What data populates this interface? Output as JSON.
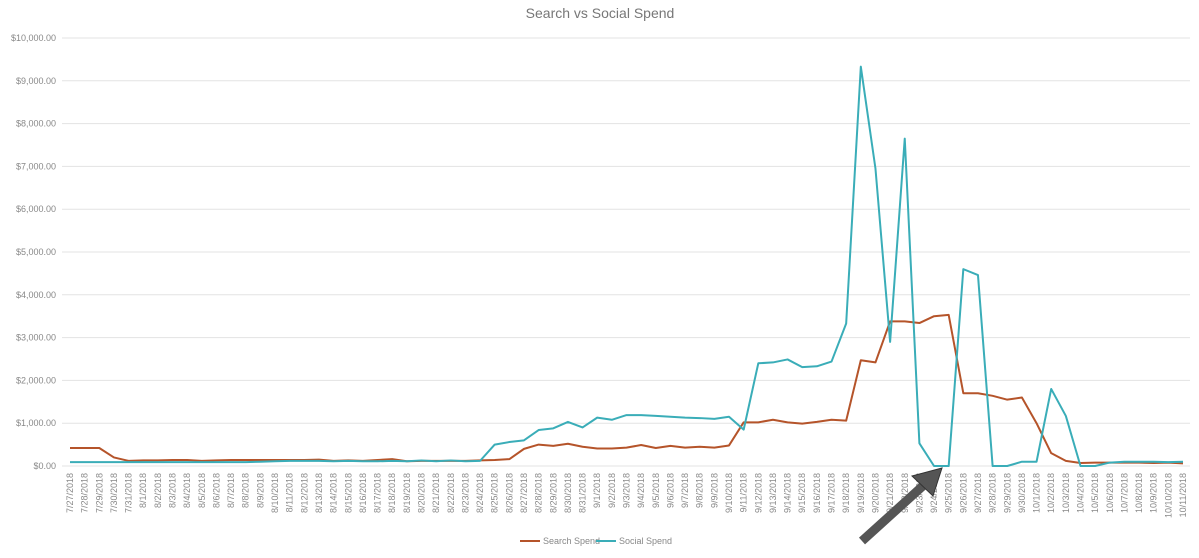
{
  "chart_data": {
    "type": "line",
    "title": "Search vs Social Spend",
    "categories": [
      "7/27/2018",
      "7/28/2018",
      "7/29/2018",
      "7/30/2018",
      "7/31/2018",
      "8/1/2018",
      "8/2/2018",
      "8/3/2018",
      "8/4/2018",
      "8/5/2018",
      "8/6/2018",
      "8/7/2018",
      "8/8/2018",
      "8/9/2018",
      "8/10/2018",
      "8/11/2018",
      "8/12/2018",
      "8/13/2018",
      "8/14/2018",
      "8/15/2018",
      "8/16/2018",
      "8/17/2018",
      "8/18/2018",
      "8/19/2018",
      "8/20/2018",
      "8/21/2018",
      "8/22/2018",
      "8/23/2018",
      "8/24/2018",
      "8/25/2018",
      "8/26/2018",
      "8/27/2018",
      "8/28/2018",
      "8/29/2018",
      "8/30/2018",
      "8/31/2018",
      "9/1/2018",
      "9/2/2018",
      "9/3/2018",
      "9/4/2018",
      "9/5/2018",
      "9/6/2018",
      "9/7/2018",
      "9/8/2018",
      "9/9/2018",
      "9/10/2018",
      "9/11/2018",
      "9/12/2018",
      "9/13/2018",
      "9/14/2018",
      "9/15/2018",
      "9/16/2018",
      "9/17/2018",
      "9/18/2018",
      "9/19/2018",
      "9/20/2018",
      "9/21/2018",
      "9/22/2018",
      "9/23/2018",
      "9/24/2018",
      "9/25/2018",
      "9/26/2018",
      "9/27/2018",
      "9/28/2018",
      "9/29/2018",
      "9/30/2018",
      "10/1/2018",
      "10/2/2018",
      "10/3/2018",
      "10/4/2018",
      "10/5/2018",
      "10/6/2018",
      "10/7/2018",
      "10/8/2018",
      "10/9/2018",
      "10/10/2018",
      "10/11/2018"
    ],
    "series": [
      {
        "name": "Search Spend",
        "color": "#b5542a",
        "values": [
          420,
          420,
          420,
          200,
          120,
          130,
          130,
          140,
          140,
          120,
          130,
          140,
          140,
          140,
          140,
          140,
          140,
          150,
          120,
          130,
          120,
          140,
          160,
          110,
          120,
          120,
          120,
          120,
          130,
          140,
          160,
          400,
          500,
          470,
          520,
          450,
          410,
          410,
          430,
          490,
          420,
          470,
          430,
          450,
          430,
          480,
          1020,
          1020,
          1080,
          1020,
          990,
          1030,
          1080,
          1060,
          2470,
          2420,
          3380,
          3380,
          3340,
          3500,
          3530,
          1700,
          1700,
          1640,
          1550,
          1600,
          1000,
          300,
          120,
          70,
          80,
          80,
          80,
          80,
          70,
          80,
          60
        ]
      },
      {
        "name": "Social Spend",
        "color": "#3aadb8",
        "values": [
          90,
          90,
          90,
          90,
          90,
          90,
          90,
          90,
          90,
          90,
          90,
          90,
          90,
          100,
          110,
          120,
          120,
          120,
          110,
          120,
          110,
          110,
          120,
          110,
          130,
          110,
          130,
          110,
          120,
          500,
          560,
          600,
          840,
          880,
          1030,
          900,
          1130,
          1080,
          1190,
          1190,
          1170,
          1150,
          1130,
          1120,
          1100,
          1150,
          850,
          2400,
          2420,
          2490,
          2310,
          2330,
          2440,
          3330,
          9330,
          6950,
          2900,
          7650,
          530,
          0,
          0,
          4600,
          4460,
          0,
          0,
          100,
          100,
          1800,
          1170,
          0,
          0,
          80,
          100,
          100,
          100,
          90,
          100
        ]
      }
    ],
    "ylim": [
      0,
      10000
    ],
    "yticks": [
      {
        "value": 0,
        "label": "$0.00"
      },
      {
        "value": 1000,
        "label": "$1,000.00"
      },
      {
        "value": 2000,
        "label": "$2,000.00"
      },
      {
        "value": 3000,
        "label": "$3,000.00"
      },
      {
        "value": 4000,
        "label": "$4,000.00"
      },
      {
        "value": 5000,
        "label": "$5,000.00"
      },
      {
        "value": 6000,
        "label": "$6,000.00"
      },
      {
        "value": 7000,
        "label": "$7,000.00"
      },
      {
        "value": 8000,
        "label": "$8,000.00"
      },
      {
        "value": 9000,
        "label": "$9,000.00"
      },
      {
        "value": 10000,
        "label": "$10,000.00"
      }
    ],
    "grid": true,
    "legend": "bottom"
  }
}
